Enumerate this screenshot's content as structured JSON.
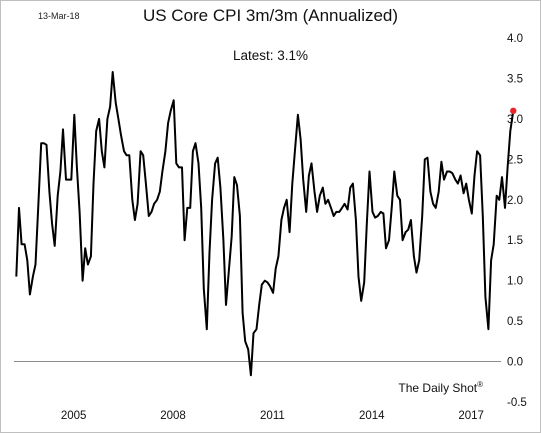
{
  "chart_data": {
    "type": "line",
    "stamp": "13-Mar-18",
    "title": "US Core CPI 3m/3m (Annualized)",
    "subtitle": "Latest:  3.1%",
    "source": "The Daily Shot",
    "source_mark": "®",
    "ylim": [
      -0.5,
      4.0
    ],
    "yticks": [
      "4.0",
      "3.5",
      "3.0",
      "2.5",
      "2.0",
      "1.5",
      "1.0",
      "0.5",
      "0.0",
      "-0.5"
    ],
    "xlim": [
      2003.7,
      2018.4
    ],
    "xticks": [
      "2005",
      "2008",
      "2011",
      "2014",
      "2017"
    ],
    "grid": false,
    "zero_line": true,
    "colors": {
      "line": "#000000",
      "latest_marker": "#e8262a",
      "zero_line": "#8c8c8c"
    },
    "series": [
      {
        "points": [
          [
            2003.77,
            1.05
          ],
          [
            2003.85,
            1.9
          ],
          [
            2003.93,
            1.45
          ],
          [
            2004.02,
            1.45
          ],
          [
            2004.1,
            1.25
          ],
          [
            2004.18,
            0.83
          ],
          [
            2004.27,
            1.05
          ],
          [
            2004.35,
            1.2
          ],
          [
            2004.43,
            1.9
          ],
          [
            2004.52,
            2.7
          ],
          [
            2004.6,
            2.7
          ],
          [
            2004.68,
            2.68
          ],
          [
            2004.77,
            2.1
          ],
          [
            2004.85,
            1.7
          ],
          [
            2004.93,
            1.43
          ],
          [
            2005.02,
            2.05
          ],
          [
            2005.1,
            2.35
          ],
          [
            2005.18,
            2.87
          ],
          [
            2005.27,
            2.25
          ],
          [
            2005.35,
            2.25
          ],
          [
            2005.43,
            2.25
          ],
          [
            2005.52,
            3.05
          ],
          [
            2005.6,
            2.4
          ],
          [
            2005.68,
            1.85
          ],
          [
            2005.77,
            1.0
          ],
          [
            2005.85,
            1.4
          ],
          [
            2005.93,
            1.2
          ],
          [
            2006.02,
            1.3
          ],
          [
            2006.1,
            2.2
          ],
          [
            2006.18,
            2.85
          ],
          [
            2006.27,
            3.0
          ],
          [
            2006.35,
            2.6
          ],
          [
            2006.43,
            2.4
          ],
          [
            2006.52,
            3.0
          ],
          [
            2006.6,
            3.15
          ],
          [
            2006.68,
            3.58
          ],
          [
            2006.77,
            3.2
          ],
          [
            2006.85,
            3.0
          ],
          [
            2006.93,
            2.8
          ],
          [
            2007.02,
            2.6
          ],
          [
            2007.1,
            2.55
          ],
          [
            2007.18,
            2.55
          ],
          [
            2007.27,
            2.0
          ],
          [
            2007.35,
            1.75
          ],
          [
            2007.43,
            1.95
          ],
          [
            2007.52,
            2.6
          ],
          [
            2007.6,
            2.55
          ],
          [
            2007.68,
            2.2
          ],
          [
            2007.77,
            1.8
          ],
          [
            2007.85,
            1.85
          ],
          [
            2007.93,
            1.95
          ],
          [
            2008.02,
            2.0
          ],
          [
            2008.1,
            2.1
          ],
          [
            2008.18,
            2.35
          ],
          [
            2008.27,
            2.6
          ],
          [
            2008.35,
            2.95
          ],
          [
            2008.43,
            3.1
          ],
          [
            2008.52,
            3.23
          ],
          [
            2008.6,
            2.45
          ],
          [
            2008.68,
            2.4
          ],
          [
            2008.77,
            2.4
          ],
          [
            2008.85,
            1.5
          ],
          [
            2008.93,
            1.9
          ],
          [
            2009.02,
            1.9
          ],
          [
            2009.1,
            2.6
          ],
          [
            2009.18,
            2.7
          ],
          [
            2009.27,
            2.45
          ],
          [
            2009.35,
            1.9
          ],
          [
            2009.43,
            0.9
          ],
          [
            2009.52,
            0.4
          ],
          [
            2009.6,
            1.35
          ],
          [
            2009.68,
            2.0
          ],
          [
            2009.77,
            2.45
          ],
          [
            2009.85,
            2.52
          ],
          [
            2009.93,
            2.15
          ],
          [
            2010.02,
            1.5
          ],
          [
            2010.1,
            0.7
          ],
          [
            2010.18,
            1.1
          ],
          [
            2010.27,
            1.55
          ],
          [
            2010.35,
            2.28
          ],
          [
            2010.43,
            2.18
          ],
          [
            2010.52,
            1.8
          ],
          [
            2010.6,
            0.6
          ],
          [
            2010.68,
            0.25
          ],
          [
            2010.77,
            0.15
          ],
          [
            2010.85,
            -0.17
          ],
          [
            2010.93,
            0.35
          ],
          [
            2011.02,
            0.4
          ],
          [
            2011.1,
            0.7
          ],
          [
            2011.18,
            0.95
          ],
          [
            2011.27,
            1.0
          ],
          [
            2011.35,
            0.98
          ],
          [
            2011.43,
            0.93
          ],
          [
            2011.52,
            0.85
          ],
          [
            2011.6,
            1.15
          ],
          [
            2011.68,
            1.3
          ],
          [
            2011.77,
            1.75
          ],
          [
            2011.85,
            1.9
          ],
          [
            2011.93,
            2.0
          ],
          [
            2012.02,
            1.6
          ],
          [
            2012.1,
            2.2
          ],
          [
            2012.18,
            2.6
          ],
          [
            2012.27,
            3.05
          ],
          [
            2012.35,
            2.75
          ],
          [
            2012.43,
            2.25
          ],
          [
            2012.52,
            1.85
          ],
          [
            2012.6,
            2.3
          ],
          [
            2012.68,
            2.45
          ],
          [
            2012.77,
            2.1
          ],
          [
            2012.85,
            1.85
          ],
          [
            2012.93,
            2.05
          ],
          [
            2013.02,
            2.15
          ],
          [
            2013.1,
            1.95
          ],
          [
            2013.18,
            2.0
          ],
          [
            2013.27,
            1.9
          ],
          [
            2013.35,
            1.8
          ],
          [
            2013.43,
            1.85
          ],
          [
            2013.52,
            1.85
          ],
          [
            2013.6,
            1.9
          ],
          [
            2013.68,
            1.95
          ],
          [
            2013.77,
            1.88
          ],
          [
            2013.85,
            2.15
          ],
          [
            2013.93,
            2.2
          ],
          [
            2014.02,
            1.75
          ],
          [
            2014.1,
            1.05
          ],
          [
            2014.18,
            0.75
          ],
          [
            2014.27,
            0.98
          ],
          [
            2014.35,
            1.7
          ],
          [
            2014.43,
            2.35
          ],
          [
            2014.52,
            1.85
          ],
          [
            2014.6,
            1.78
          ],
          [
            2014.68,
            1.8
          ],
          [
            2014.77,
            1.85
          ],
          [
            2014.85,
            1.83
          ],
          [
            2014.93,
            1.4
          ],
          [
            2015.02,
            1.5
          ],
          [
            2015.1,
            1.9
          ],
          [
            2015.18,
            2.35
          ],
          [
            2015.27,
            2.05
          ],
          [
            2015.35,
            2.0
          ],
          [
            2015.43,
            1.5
          ],
          [
            2015.52,
            1.6
          ],
          [
            2015.6,
            1.63
          ],
          [
            2015.68,
            1.75
          ],
          [
            2015.77,
            1.3
          ],
          [
            2015.85,
            1.1
          ],
          [
            2015.93,
            1.25
          ],
          [
            2016.02,
            1.8
          ],
          [
            2016.1,
            2.5
          ],
          [
            2016.18,
            2.52
          ],
          [
            2016.27,
            2.1
          ],
          [
            2016.35,
            1.95
          ],
          [
            2016.43,
            1.9
          ],
          [
            2016.52,
            2.1
          ],
          [
            2016.6,
            2.47
          ],
          [
            2016.68,
            2.25
          ],
          [
            2016.77,
            2.35
          ],
          [
            2016.85,
            2.35
          ],
          [
            2016.93,
            2.33
          ],
          [
            2017.02,
            2.25
          ],
          [
            2017.1,
            2.2
          ],
          [
            2017.18,
            2.3
          ],
          [
            2017.27,
            2.08
          ],
          [
            2017.35,
            2.2
          ],
          [
            2017.43,
            2.0
          ],
          [
            2017.52,
            1.83
          ],
          [
            2017.6,
            2.3
          ],
          [
            2017.68,
            2.6
          ],
          [
            2017.77,
            2.55
          ],
          [
            2017.85,
            1.8
          ],
          [
            2017.93,
            0.8
          ],
          [
            2018.02,
            0.4
          ],
          [
            2018.1,
            1.25
          ],
          [
            2018.18,
            1.45
          ],
          [
            2018.27,
            2.05
          ],
          [
            2018.35,
            2.0
          ],
          [
            2018.43,
            2.28
          ],
          [
            2018.52,
            1.9
          ],
          [
            2018.6,
            2.4
          ],
          [
            2018.68,
            2.85
          ],
          [
            2018.77,
            3.1
          ]
        ]
      }
    ]
  }
}
